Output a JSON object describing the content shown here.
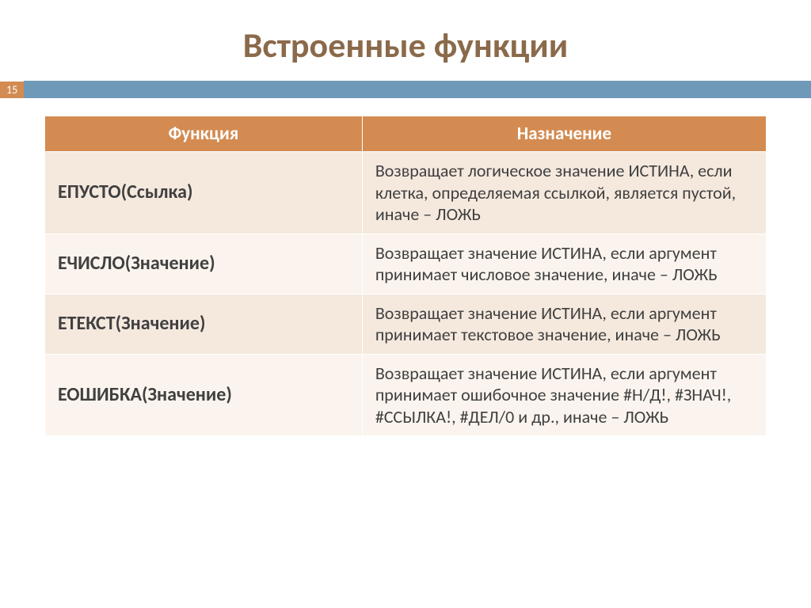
{
  "title": "Встроенные функции",
  "pageNumber": "15",
  "colors": {
    "title": "#8a6a4a",
    "bar": "#6f99b8",
    "headerBg": "#d38b51",
    "headerText": "#ffffff",
    "band0": "#f5e9de",
    "band1": "#fbf4ee",
    "bodyText": "#404040"
  },
  "table": {
    "headers": {
      "col1": "Функция",
      "col2": "Назначение"
    },
    "columnWidths": [
      "44%",
      "56%"
    ],
    "rows": [
      {
        "fn": "ЕПУСТО(Ссылка)",
        "desc": "Возвращает логическое значение ИСТИНА, если клетка, определяемая ссылкой, является пустой, иначе – ЛОЖЬ"
      },
      {
        "fn": "ЕЧИСЛО(Значение)",
        "desc": "Возвращает значение ИСТИНА, если аргумент принимает числовое значение, иначе – ЛОЖЬ"
      },
      {
        "fn": "ЕТЕКСТ(Значение)",
        "desc": "Возвращает значение ИСТИНА, если аргумент принимает текстовое значение, иначе – ЛОЖЬ"
      },
      {
        "fn": "ЕОШИБКА(Значение)",
        "desc": "Возвращает значение ИСТИНА, если аргумент принимает ошибочное значение #Н/Д!, #ЗНАЧ!, #ССЫЛКА!, #ДЕЛ/0 и др., иначе – ЛОЖЬ"
      }
    ]
  }
}
